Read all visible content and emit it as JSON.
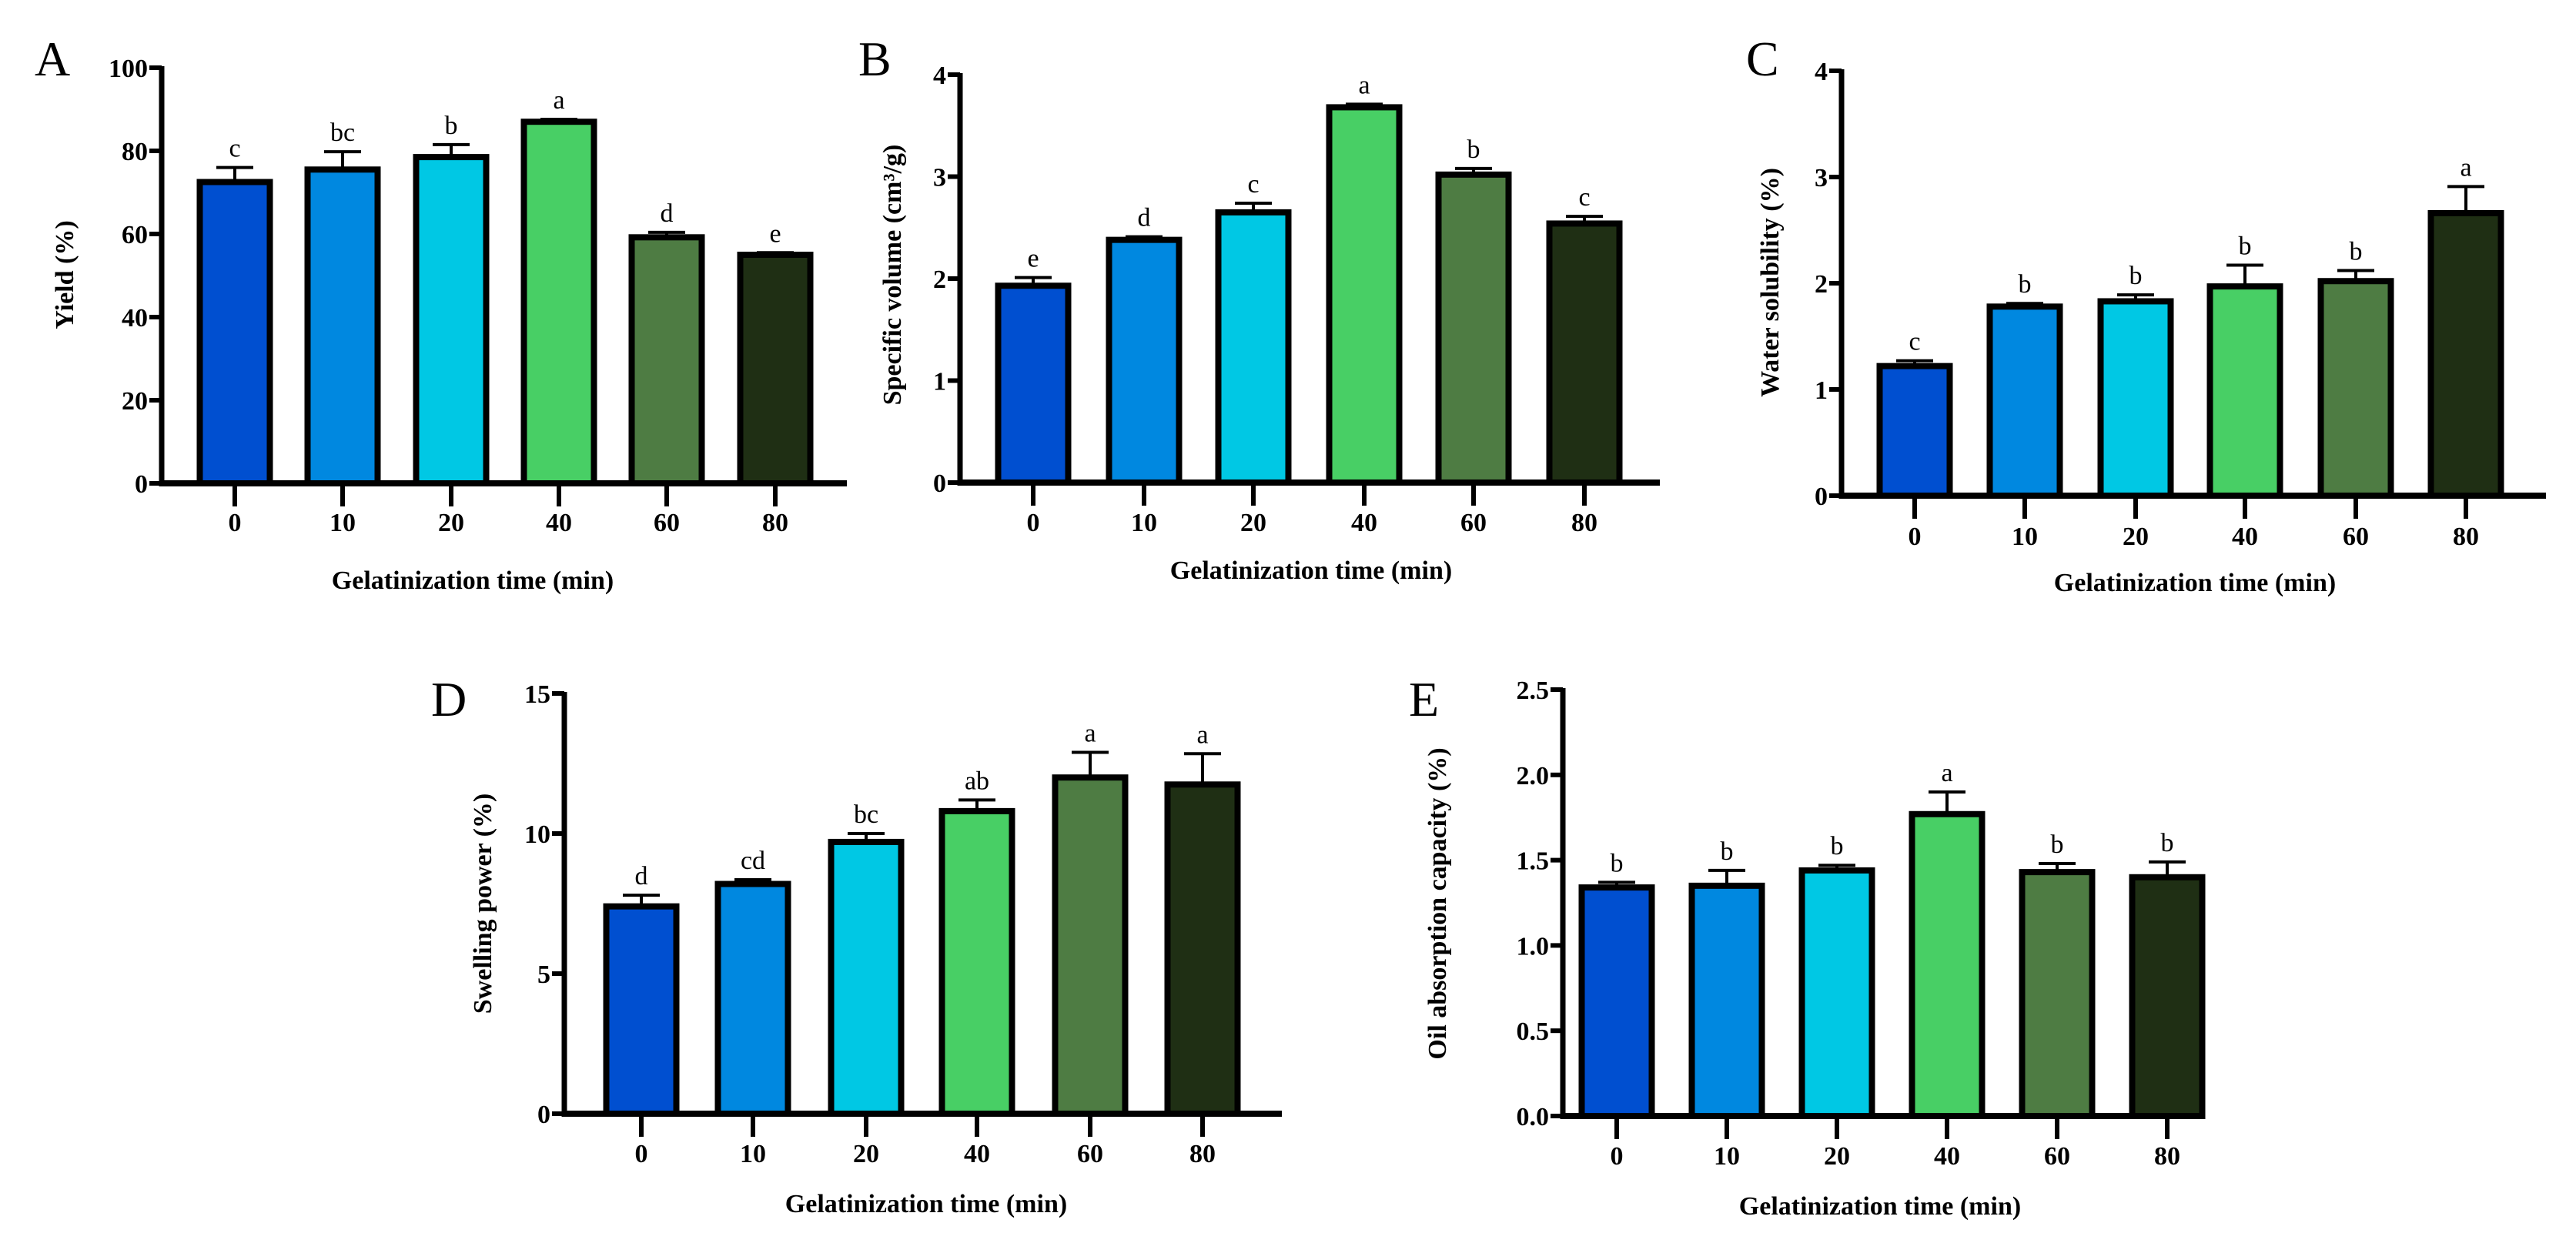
{
  "colors": [
    "#004FD0",
    "#0088E0",
    "#00C8E4",
    "#48CF65",
    "#4E7C43",
    "#1F2F14"
  ],
  "chart_data": [
    {
      "panel": "A",
      "type": "bar",
      "title": "",
      "xlabel": "Gelatinization time (min)",
      "ylabel": "Yield (%)",
      "categories": [
        "0",
        "10",
        "20",
        "40",
        "60",
        "80"
      ],
      "values": [
        72.5,
        75.5,
        78.5,
        87.0,
        59.2,
        55.0
      ],
      "errors": [
        3.5,
        4.3,
        3.0,
        0.6,
        1.2,
        0.5
      ],
      "letters": [
        "c",
        "bc",
        "b",
        "a",
        "d",
        "e"
      ],
      "ylim": [
        0,
        100
      ],
      "yticks": [
        "0",
        "20",
        "40",
        "60",
        "80",
        "100"
      ],
      "grid": false
    },
    {
      "panel": "B",
      "type": "bar",
      "title": "",
      "xlabel": "Gelatinization time (min)",
      "ylabel": "Specific volume (cm³/g)",
      "categories": [
        "0",
        "10",
        "20",
        "40",
        "60",
        "80"
      ],
      "values": [
        1.93,
        2.38,
        2.65,
        3.68,
        3.02,
        2.54
      ],
      "errors": [
        0.08,
        0.03,
        0.09,
        0.03,
        0.06,
        0.07
      ],
      "letters": [
        "e",
        "d",
        "c",
        "a",
        "b",
        "c"
      ],
      "ylim": [
        0,
        4
      ],
      "yticks": [
        "0",
        "1",
        "2",
        "3",
        "4"
      ],
      "grid": false
    },
    {
      "panel": "C",
      "type": "bar",
      "title": "",
      "xlabel": "Gelatinization time (min)",
      "ylabel": "Water solubility (%)",
      "categories": [
        "0",
        "10",
        "20",
        "40",
        "60",
        "80"
      ],
      "values": [
        1.22,
        1.78,
        1.83,
        1.97,
        2.02,
        2.66
      ],
      "errors": [
        0.05,
        0.03,
        0.06,
        0.2,
        0.1,
        0.25
      ],
      "letters": [
        "c",
        "b",
        "b",
        "b",
        "b",
        "a"
      ],
      "ylim": [
        0,
        4
      ],
      "yticks": [
        "0",
        "1",
        "2",
        "3",
        "4"
      ],
      "grid": false
    },
    {
      "panel": "D",
      "type": "bar",
      "title": "",
      "xlabel": "Gelatinization time (min)",
      "ylabel": "Swelling power (%)",
      "categories": [
        "0",
        "10",
        "20",
        "40",
        "60",
        "80"
      ],
      "values": [
        7.4,
        8.2,
        9.7,
        10.8,
        12.0,
        11.75
      ],
      "errors": [
        0.4,
        0.15,
        0.3,
        0.4,
        0.9,
        1.1
      ],
      "letters": [
        "d",
        "cd",
        "bc",
        "ab",
        "a",
        "a"
      ],
      "ylim": [
        0,
        15
      ],
      "yticks": [
        "0",
        "5",
        "10",
        "15"
      ],
      "grid": false
    },
    {
      "panel": "E",
      "type": "bar",
      "title": "",
      "xlabel": "Gelatinization time (min)",
      "ylabel": "Oil absorption capacity (%)",
      "categories": [
        "0",
        "10",
        "20",
        "40",
        "60",
        "80"
      ],
      "values": [
        1.34,
        1.35,
        1.44,
        1.77,
        1.43,
        1.4
      ],
      "errors": [
        0.03,
        0.09,
        0.03,
        0.13,
        0.05,
        0.09
      ],
      "letters": [
        "b",
        "b",
        "b",
        "a",
        "b",
        "b"
      ],
      "ylim": [
        0,
        2.5
      ],
      "yticks": [
        "0.0",
        "0.5",
        "1.0",
        "1.5",
        "2.0",
        "2.5"
      ],
      "grid": false
    }
  ]
}
